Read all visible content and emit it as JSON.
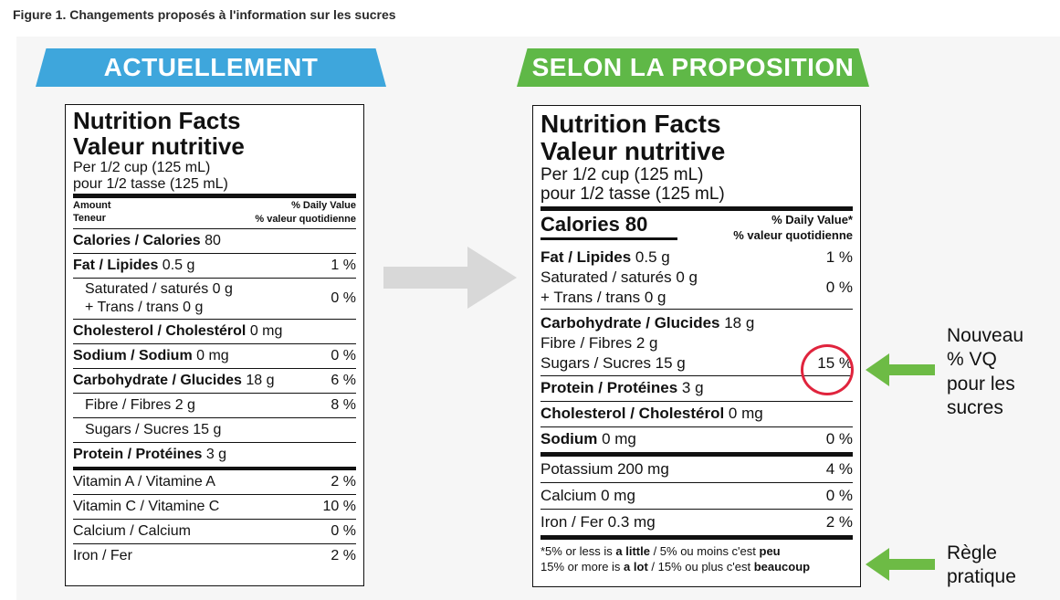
{
  "caption": "Figure 1. Changements proposés à l'information sur les sucres",
  "banners": {
    "current": "ACTUELLEMENT",
    "proposed": "SELON LA PROPOSITION"
  },
  "current": {
    "title_en": "Nutrition Facts",
    "title_fr": "Valeur nutritive",
    "serving_en": "Per 1/2 cup (125 mL)",
    "serving_fr": "pour 1/2 tasse (125 mL)",
    "amount_en": "Amount",
    "amount_fr": "Teneur",
    "dv_en": "% Daily Value",
    "dv_fr": "% valeur quotidienne",
    "calories": {
      "label": "Calories / Calories",
      "value": " 80"
    },
    "fat": {
      "label": "Fat / Lipides",
      "amount": " 0.5 g",
      "pct": "1 %"
    },
    "saturated": {
      "line1": "Saturated / saturés 0 g",
      "line2": "+ Trans / trans 0 g",
      "pct": "0 %"
    },
    "cholesterol": {
      "label": "Cholesterol / Cholestérol",
      "amount": " 0 mg"
    },
    "sodium": {
      "label": "Sodium / Sodium",
      "amount": " 0 mg",
      "pct": "0 %"
    },
    "carb": {
      "label": "Carbohydrate / Glucides",
      "amount": " 18 g",
      "pct": "6 %"
    },
    "fibre": {
      "label": "Fibre / Fibres 2 g",
      "pct": "8 %"
    },
    "sugars": {
      "label": "Sugars / Sucres 15 g"
    },
    "protein": {
      "label": "Protein / Protéines",
      "amount": " 3 g"
    },
    "vitA": {
      "label": "Vitamin A / Vitamine A",
      "pct": "2 %"
    },
    "vitC": {
      "label": "Vitamin C / Vitamine C",
      "pct": "10 %"
    },
    "calcium": {
      "label": "Calcium / Calcium",
      "pct": "0 %"
    },
    "iron": {
      "label": "Iron / Fer",
      "pct": "2 %"
    }
  },
  "proposed": {
    "title_en": "Nutrition Facts",
    "title_fr": "Valeur nutritive",
    "serving_en": "Per 1/2 cup (125 mL)",
    "serving_fr": "pour 1/2 tasse (125 mL)",
    "calories": "Calories 80",
    "dv_en": "% Daily Value*",
    "dv_fr": "% valeur quotidienne",
    "fat": {
      "label": "Fat / Lipides",
      "amount": " 0.5 g",
      "pct": "1 %"
    },
    "saturated": {
      "line1": "Saturated / saturés 0 g",
      "line2": "+ Trans / trans 0 g",
      "pct": "0 %"
    },
    "carb": {
      "label": "Carbohydrate / Glucides",
      "amount": " 18 g"
    },
    "fibre": {
      "label": "Fibre / Fibres 2 g"
    },
    "sugars": {
      "label": "Sugars / Sucres 15 g",
      "pct": "15 %"
    },
    "protein": {
      "label": "Protein / Protéines",
      "amount": " 3 g"
    },
    "cholesterol": {
      "label": "Cholesterol / Cholestérol",
      "amount": " 0 mg"
    },
    "sodium": {
      "label": "Sodium",
      "amount": " 0 mg",
      "pct": "0 %"
    },
    "potassium": {
      "label": "Potassium 200 mg",
      "pct": "4 %"
    },
    "calcium": {
      "label": "Calcium 0 mg",
      "pct": "0 %"
    },
    "iron": {
      "label": "Iron / Fer 0.3 mg",
      "pct": "2 %"
    },
    "note1_a": "*5% or less is ",
    "note1_b": "a little",
    "note1_c": " / 5% ou moins c'est ",
    "note1_d": "peu",
    "note2_a": "15% or more is ",
    "note2_b": "a lot",
    "note2_c": " / 15% ou plus c'est ",
    "note2_d": "beaucoup"
  },
  "annotations": {
    "new_dv": [
      "Nouveau",
      "% VQ",
      "pour les",
      "sucres"
    ],
    "rule": [
      "Règle",
      "pratique"
    ]
  },
  "colors": {
    "blue": "#3ea6dc",
    "green": "#5fb847",
    "red": "#e0243d",
    "grey_arrow": "#d8d8d8"
  }
}
